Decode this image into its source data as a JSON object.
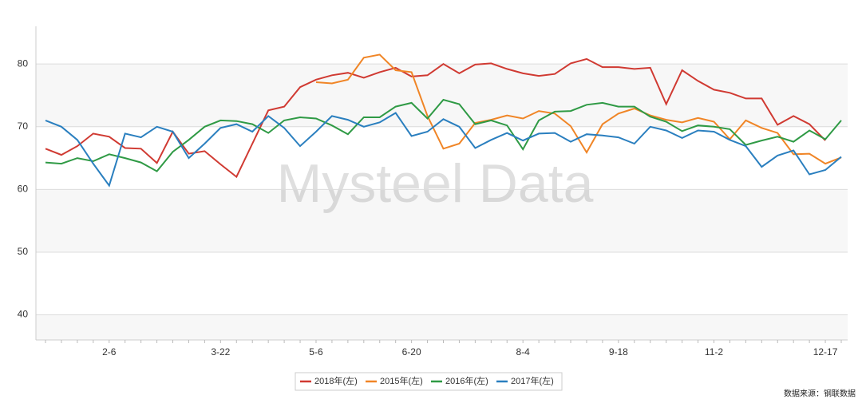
{
  "chart_data": {
    "type": "line",
    "watermark": "Mysteel Data",
    "source": "数据来源：钢联数据",
    "categories": [
      null,
      null,
      null,
      null,
      "2-6",
      null,
      null,
      null,
      null,
      null,
      null,
      "3-22",
      null,
      null,
      null,
      null,
      null,
      "5-6",
      null,
      null,
      null,
      null,
      null,
      "6-20",
      null,
      null,
      null,
      null,
      null,
      null,
      "8-4",
      null,
      null,
      null,
      null,
      null,
      "9-18",
      null,
      null,
      null,
      null,
      null,
      "11-2",
      null,
      null,
      null,
      null,
      null,
      null,
      "12-17",
      null
    ],
    "ylim": [
      36,
      86
    ],
    "yticks": [
      40,
      50,
      60,
      70,
      80
    ],
    "grid": true,
    "legend": "bottom",
    "series": [
      {
        "name": "2018年(左)",
        "color": "#d03a32",
        "values": [
          66.5,
          65.5,
          66.9,
          68.9,
          68.4,
          66.6,
          66.5,
          64.2,
          69.2,
          65.7,
          66.1,
          64,
          62,
          67.3,
          72.6,
          73.2,
          76.3,
          77.5,
          78.2,
          78.6,
          77.8,
          78.7,
          79.4,
          78,
          78.2,
          80,
          78.5,
          79.9,
          80.1,
          79.2,
          78.5,
          78.1,
          78.4,
          80.1,
          80.8,
          79.5,
          79.5,
          79.2,
          79.4,
          73.6,
          79,
          77.3,
          75.9,
          75.4,
          74.5,
          74.5,
          70.3,
          71.7,
          70.4,
          67.8,
          null
        ]
      },
      {
        "name": "2015年(左)",
        "color": "#f08526",
        "values": [
          null,
          null,
          null,
          null,
          null,
          null,
          null,
          null,
          null,
          null,
          null,
          null,
          null,
          null,
          null,
          null,
          null,
          77.1,
          76.9,
          77.5,
          81,
          81.5,
          79,
          78.7,
          71.7,
          66.5,
          67.3,
          70.6,
          71.1,
          71.8,
          71.3,
          72.5,
          72.1,
          70.1,
          65.9,
          70.4,
          72.1,
          72.9,
          71.8,
          71.1,
          70.7,
          71.4,
          70.8,
          68,
          71,
          69.8,
          69,
          65.6,
          65.7,
          64.1,
          65.1
        ]
      },
      {
        "name": "2016年(左)",
        "color": "#2f9a45",
        "values": [
          64.3,
          64.1,
          65,
          64.5,
          65.6,
          65,
          64.3,
          62.9,
          66,
          67.9,
          70,
          71,
          70.9,
          70.4,
          69,
          71,
          71.5,
          71.3,
          70.2,
          68.8,
          71.5,
          71.5,
          73.2,
          73.8,
          71.3,
          74.3,
          73.6,
          70.4,
          71,
          70.2,
          66.4,
          71,
          72.4,
          72.5,
          73.5,
          73.8,
          73.2,
          73.2,
          71.6,
          70.8,
          69.3,
          70.2,
          70,
          69.6,
          67.1,
          67.8,
          68.4,
          67.6,
          69.4,
          68,
          71
        ]
      },
      {
        "name": "2017年(左)",
        "color": "#2a7fbf",
        "values": [
          71,
          70,
          67.9,
          64.1,
          60.6,
          68.9,
          68.3,
          70,
          69.2,
          65,
          67.3,
          69.8,
          70.4,
          69.2,
          71.7,
          69.8,
          66.9,
          69.2,
          71.7,
          71.1,
          70,
          70.7,
          72.2,
          68.5,
          69.2,
          71.2,
          70,
          66.6,
          67.9,
          69,
          67.8,
          68.9,
          69,
          67.6,
          68.8,
          68.6,
          68.3,
          67.3,
          70,
          69.4,
          68.2,
          69.4,
          69.2,
          67.9,
          66.9,
          63.6,
          65.4,
          66.2,
          62.4,
          63.1,
          65.2
        ]
      }
    ]
  }
}
